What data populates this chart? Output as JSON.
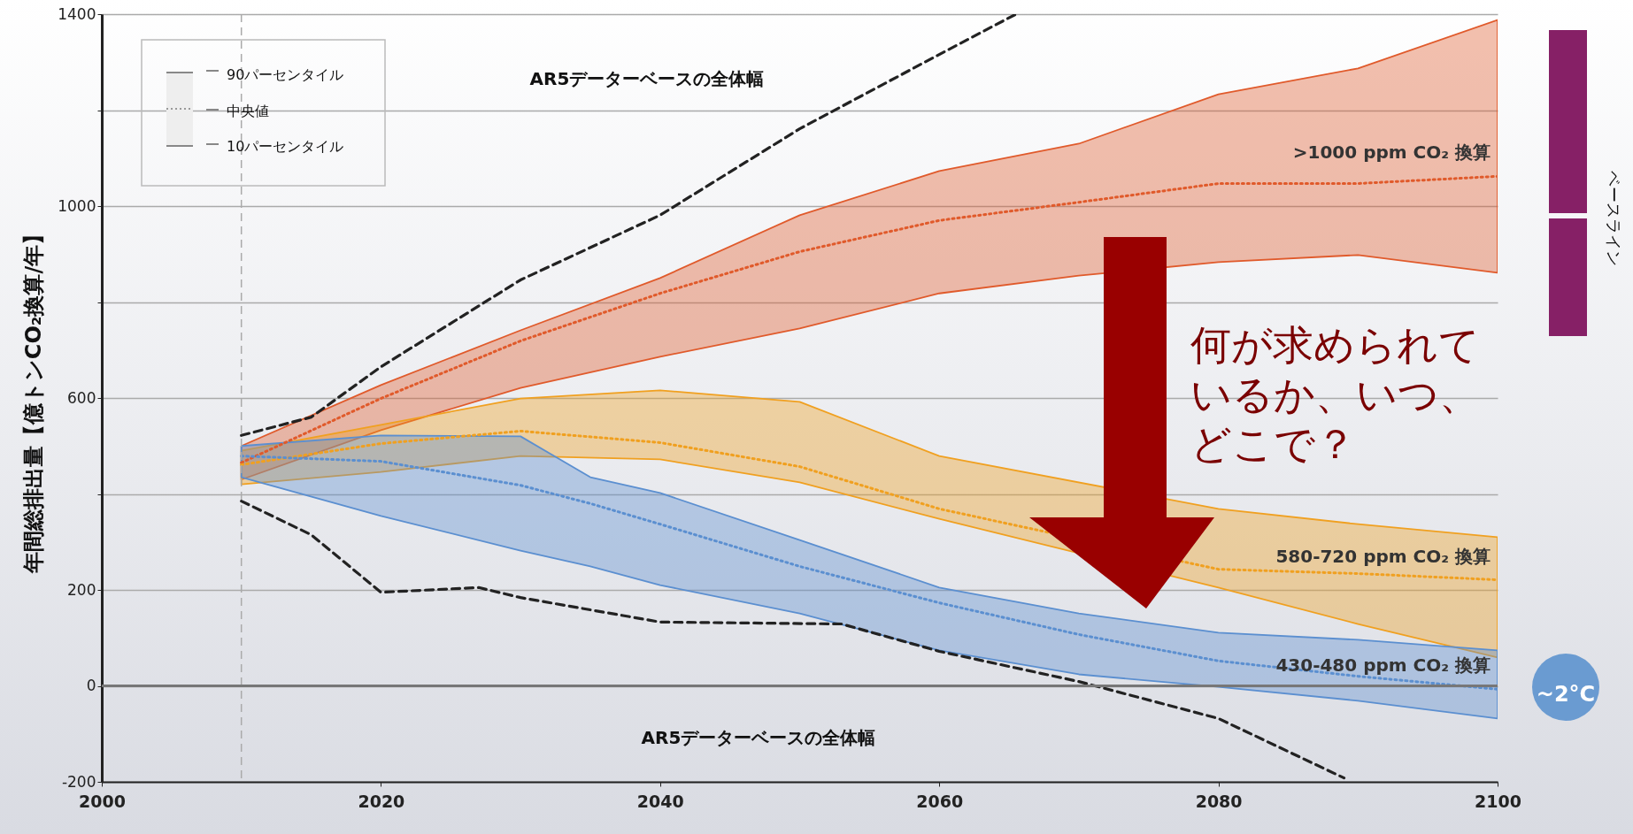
{
  "chart_data": {
    "type": "line",
    "ylabel": "年間総排出量【億トンCO₂換算/年】",
    "x": [
      2010,
      2020,
      2030,
      2040,
      2050,
      2060,
      2070,
      2080,
      2090,
      2100
    ],
    "xlim": [
      2000,
      2100
    ],
    "xticks": [
      2000,
      2020,
      2040,
      2060,
      2080,
      2100
    ],
    "ylim": [
      -200,
      1400
    ],
    "yticks": [
      -200,
      0,
      200,
      {
        "value": 400,
        "label": null
      },
      600,
      {
        "value": 800,
        "label": null
      },
      1000,
      {
        "value": 1200,
        "label": null
      },
      1400
    ],
    "grid": "y",
    "series": [
      {
        "name": ">1000 ppm CO₂ 換算",
        "color": "#e05a2b",
        "line_style": "dotted",
        "values": [
          465,
          599,
          719,
          818,
          905,
          970,
          1008,
          1047,
          1047,
          1062
        ],
        "lower": [
          430,
          533,
          621,
          686,
          745,
          818,
          855,
          883,
          898,
          861
        ],
        "upper": [
          500,
          627,
          741,
          850,
          981,
          1073,
          1130,
          1233,
          1287,
          1388
        ]
      },
      {
        "name": "580-720 ppm CO₂ 換算",
        "color": "#f0a020",
        "line_style": "dotted",
        "x": [
          2010,
          2020,
          2030,
          2040,
          2050,
          2060,
          2080,
          2090,
          2100
        ],
        "values": [
          461,
          505,
          531,
          507,
          457,
          369,
          243,
          234,
          221
        ],
        "lower": [
          420,
          446,
          479,
          472,
          424,
          348,
          205,
          129,
          59
        ],
        "upper": [
          490,
          544,
          599,
          616,
          592,
          479,
          369,
          337,
          310
        ]
      },
      {
        "name": "430-480 ppm CO₂ 換算",
        "color": "#5b8fd0",
        "line_style": "dotted",
        "x": [
          2010,
          2020,
          2030,
          2035,
          2040,
          2050,
          2060,
          2070,
          2080,
          2090,
          2100
        ],
        "values": [
          479,
          468,
          418,
          380,
          337,
          249,
          173,
          107,
          52,
          20,
          -7
        ],
        "lower": [
          435,
          354,
          282,
          249,
          210,
          151,
          74,
          24,
          -2,
          -31,
          -68
        ],
        "upper": [
          500,
          522,
          520,
          435,
          402,
          304,
          205,
          151,
          111,
          96,
          74
        ]
      },
      {
        "type": "line",
        "color": "#222222",
        "line_style": "dashed",
        "x": [
          2010,
          2015,
          2020,
          2030,
          2040,
          2050,
          2060,
          2065.5
        ],
        "values": [
          522,
          560,
          665,
          846,
          981,
          1161,
          1316,
          1400
        ]
      },
      {
        "type": "line",
        "color": "#222222",
        "line_style": "dashed",
        "x": [
          2010,
          2015,
          2020,
          2027,
          2030,
          2040,
          2053,
          2060,
          2070,
          2080,
          2089
        ],
        "values": [
          385,
          315,
          195,
          205,
          184,
          133,
          129,
          72,
          9,
          -68,
          -192
        ]
      }
    ],
    "ref_lines": [
      {
        "axis": "x",
        "value": 2010,
        "color": "#aaaaaa",
        "line_style": "dashed"
      },
      {
        "axis": "y",
        "value": 0,
        "color": "#777777",
        "line_style": "solid"
      }
    ],
    "annotations": [
      "90パーセンタイル",
      "中央値",
      "10パーセンタイル",
      "何が求められているか、いつ、どこで？",
      "ベースライン",
      "~2°C",
      "AR5データーベースの全体幅",
      "AR5データーベースの全体幅"
    ]
  }
}
